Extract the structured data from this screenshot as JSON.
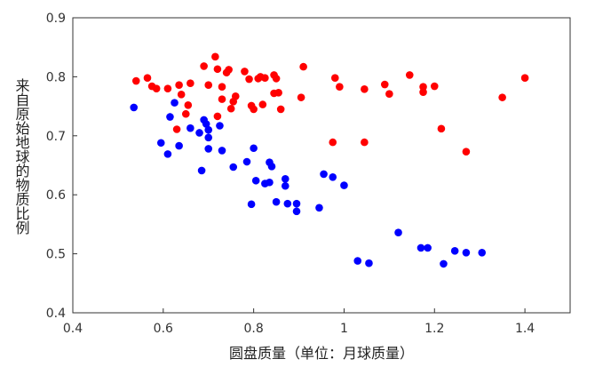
{
  "chart_data": {
    "type": "scatter",
    "xlabel": "圆盘质量（单位：月球质量）",
    "ylabel": "来自原始地球的物质比例",
    "xlim": [
      0.4,
      1.5
    ],
    "ylim": [
      0.4,
      0.9
    ],
    "x_ticks": [
      "0.4",
      "0.6",
      "0.8",
      "1",
      "1.2",
      "1.4"
    ],
    "y_ticks": [
      "0.4",
      "0.5",
      "0.6",
      "0.7",
      "0.8",
      "0.9"
    ],
    "grid": false,
    "series": [
      {
        "color": "#ff0000",
        "points": [
          [
            0.54,
            0.793
          ],
          [
            0.565,
            0.798
          ],
          [
            0.575,
            0.784
          ],
          [
            0.585,
            0.78
          ],
          [
            0.61,
            0.78
          ],
          [
            0.635,
            0.786
          ],
          [
            0.64,
            0.77
          ],
          [
            0.655,
            0.752
          ],
          [
            0.66,
            0.789
          ],
          [
            0.65,
            0.737
          ],
          [
            0.63,
            0.711
          ],
          [
            0.69,
            0.818
          ],
          [
            0.7,
            0.786
          ],
          [
            0.715,
            0.834
          ],
          [
            0.72,
            0.813
          ],
          [
            0.73,
            0.783
          ],
          [
            0.74,
            0.807
          ],
          [
            0.745,
            0.812
          ],
          [
            0.75,
            0.746
          ],
          [
            0.755,
            0.758
          ],
          [
            0.76,
            0.767
          ],
          [
            0.72,
            0.733
          ],
          [
            0.73,
            0.762
          ],
          [
            0.78,
            0.809
          ],
          [
            0.79,
            0.796
          ],
          [
            0.8,
            0.745
          ],
          [
            0.81,
            0.797
          ],
          [
            0.815,
            0.8
          ],
          [
            0.82,
            0.753
          ],
          [
            0.825,
            0.798
          ],
          [
            0.845,
            0.803
          ],
          [
            0.85,
            0.797
          ],
          [
            0.855,
            0.773
          ],
          [
            0.86,
            0.745
          ],
          [
            0.845,
            0.772
          ],
          [
            0.795,
            0.751
          ],
          [
            0.91,
            0.817
          ],
          [
            0.905,
            0.765
          ],
          [
            0.98,
            0.798
          ],
          [
            0.99,
            0.783
          ],
          [
            0.975,
            0.689
          ],
          [
            1.045,
            0.779
          ],
          [
            1.045,
            0.689
          ],
          [
            1.09,
            0.787
          ],
          [
            1.1,
            0.771
          ],
          [
            1.145,
            0.803
          ],
          [
            1.175,
            0.774
          ],
          [
            1.175,
            0.783
          ],
          [
            1.2,
            0.784
          ],
          [
            1.215,
            0.712
          ],
          [
            1.27,
            0.673
          ],
          [
            1.35,
            0.765
          ],
          [
            1.4,
            0.798
          ]
        ]
      },
      {
        "color": "#0000ff",
        "points": [
          [
            0.535,
            0.748
          ],
          [
            0.625,
            0.756
          ],
          [
            0.615,
            0.732
          ],
          [
            0.595,
            0.688
          ],
          [
            0.61,
            0.669
          ],
          [
            0.635,
            0.683
          ],
          [
            0.66,
            0.713
          ],
          [
            0.68,
            0.705
          ],
          [
            0.69,
            0.727
          ],
          [
            0.695,
            0.72
          ],
          [
            0.7,
            0.697
          ],
          [
            0.7,
            0.678
          ],
          [
            0.685,
            0.641
          ],
          [
            0.7,
            0.71
          ],
          [
            0.725,
            0.717
          ],
          [
            0.73,
            0.675
          ],
          [
            0.755,
            0.647
          ],
          [
            0.785,
            0.656
          ],
          [
            0.8,
            0.679
          ],
          [
            0.805,
            0.624
          ],
          [
            0.795,
            0.584
          ],
          [
            0.825,
            0.619
          ],
          [
            0.835,
            0.621
          ],
          [
            0.835,
            0.655
          ],
          [
            0.84,
            0.648
          ],
          [
            0.85,
            0.588
          ],
          [
            0.87,
            0.627
          ],
          [
            0.87,
            0.615
          ],
          [
            0.875,
            0.585
          ],
          [
            0.895,
            0.585
          ],
          [
            0.895,
            0.572
          ],
          [
            0.945,
            0.578
          ],
          [
            0.955,
            0.635
          ],
          [
            0.975,
            0.63
          ],
          [
            1.0,
            0.616
          ],
          [
            1.03,
            0.488
          ],
          [
            1.055,
            0.484
          ],
          [
            1.12,
            0.536
          ],
          [
            1.17,
            0.51
          ],
          [
            1.185,
            0.51
          ],
          [
            1.22,
            0.483
          ],
          [
            1.245,
            0.505
          ],
          [
            1.27,
            0.502
          ],
          [
            1.305,
            0.502
          ]
        ]
      }
    ]
  }
}
